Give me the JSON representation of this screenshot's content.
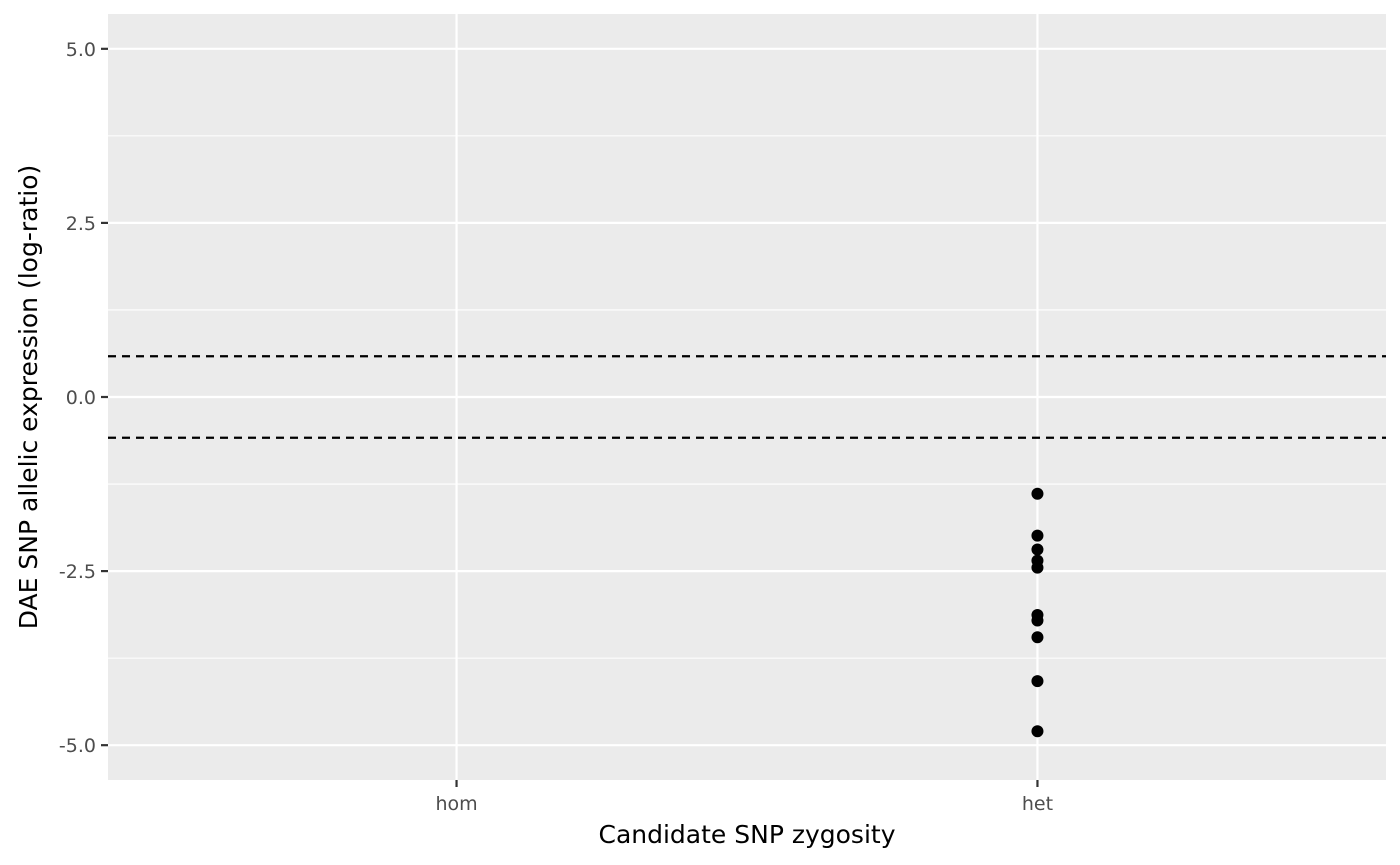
{
  "chart_data": {
    "type": "scatter",
    "title": "",
    "xlabel": "Candidate SNP zygosity",
    "ylabel": "DAE SNP allelic expression (log-ratio)",
    "categories": [
      "hom",
      "het"
    ],
    "ylim": [
      -5.5,
      5.5
    ],
    "y_ticks": [
      5.0,
      2.5,
      0.0,
      -2.5,
      -5.0
    ],
    "y_tick_labels": [
      "5.0",
      "2.5",
      "0.0",
      "-2.5",
      "-5.0"
    ],
    "reference_lines": [
      0.585,
      -0.585
    ],
    "points": [
      {
        "x": "het",
        "y": -1.39
      },
      {
        "x": "het",
        "y": -1.99
      },
      {
        "x": "het",
        "y": -2.19
      },
      {
        "x": "het",
        "y": -2.35
      },
      {
        "x": "het",
        "y": -2.45
      },
      {
        "x": "het",
        "y": -3.13
      },
      {
        "x": "het",
        "y": -3.21
      },
      {
        "x": "het",
        "y": -3.45
      },
      {
        "x": "het",
        "y": -4.08
      },
      {
        "x": "het",
        "y": -4.8
      }
    ],
    "grid": true,
    "colors": {
      "panel": "#ebebeb",
      "grid": "#ffffff",
      "point": "#000000",
      "reference_line": "#000000"
    }
  }
}
